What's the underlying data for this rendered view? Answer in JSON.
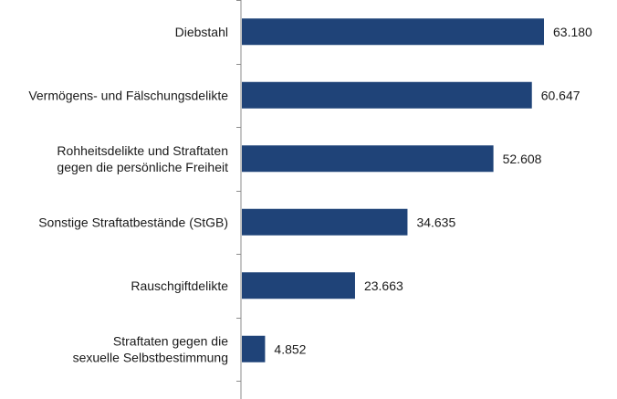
{
  "chart_data": {
    "type": "bar",
    "orientation": "horizontal",
    "categories": [
      [
        "Diebstahl"
      ],
      [
        "Vermögens- und Fälschungsdelikte"
      ],
      [
        "Rohheitsdelikte und Straftaten",
        "gegen die persönliche Freiheit"
      ],
      [
        "Sonstige Straftatbestände (StGB)"
      ],
      [
        "Rauschgiftdelikte"
      ],
      [
        "Straftaten gegen die",
        "sexuelle Selbstbestimmung"
      ]
    ],
    "values": [
      63180,
      60647,
      52608,
      34635,
      23663,
      4852
    ],
    "value_labels": [
      "63.180",
      "60.647",
      "52.608",
      "34.635",
      "23.663",
      "4.852"
    ],
    "xlim": [
      0,
      70000
    ],
    "title": "",
    "xlabel": "",
    "ylabel": "",
    "grid": false,
    "legend": "none",
    "bar_color": "#1f4378",
    "axis_color": "#8c8c8c"
  }
}
